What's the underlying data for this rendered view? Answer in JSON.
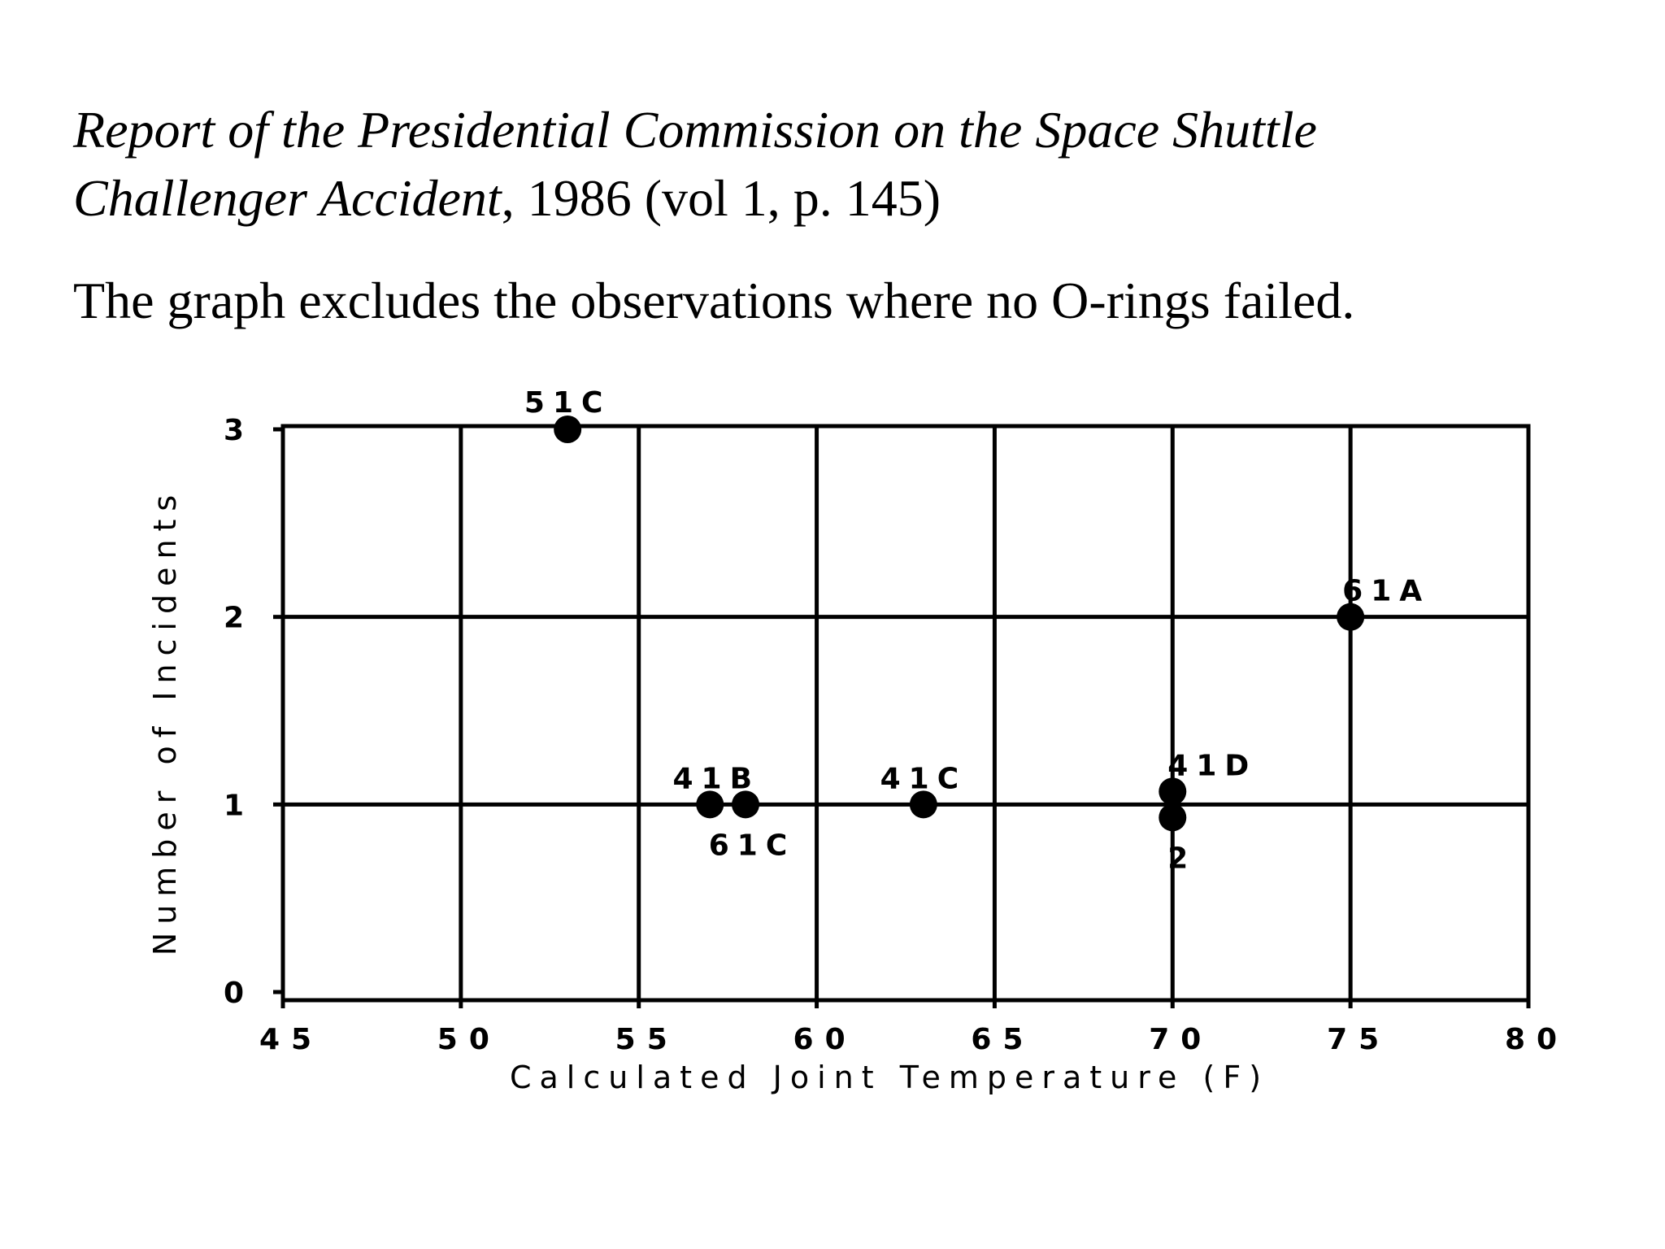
{
  "caption": {
    "line1_italic": "Report of the Presidential Commission on the Space Shuttle",
    "line2_italic": "Challenger Accident",
    "line2_rest": ", 1986 (vol 1, p. 145)"
  },
  "note": "The graph excludes the observations where no O-rings failed.",
  "chart_data": {
    "type": "scatter",
    "xlabel": "Calculated Joint Temperature (F)",
    "ylabel": "Number of Incidents",
    "xlim": [
      45,
      80
    ],
    "ylim": [
      0,
      3
    ],
    "xticks": [
      45,
      50,
      55,
      60,
      65,
      70,
      75,
      80
    ],
    "yticks": [
      0,
      1,
      2,
      3
    ],
    "grid": true,
    "point_color": "#000000",
    "points": [
      {
        "x": 53,
        "y": 3,
        "label": "51C"
      },
      {
        "x": 57,
        "y": 1,
        "label": "41B"
      },
      {
        "x": 58,
        "y": 1,
        "label": "61C"
      },
      {
        "x": 63,
        "y": 1,
        "label": "41C"
      },
      {
        "x": 70,
        "y": 1,
        "label": "41D"
      },
      {
        "x": 70,
        "y": 1,
        "label": "2"
      },
      {
        "x": 75,
        "y": 2,
        "label": "61A"
      }
    ]
  }
}
